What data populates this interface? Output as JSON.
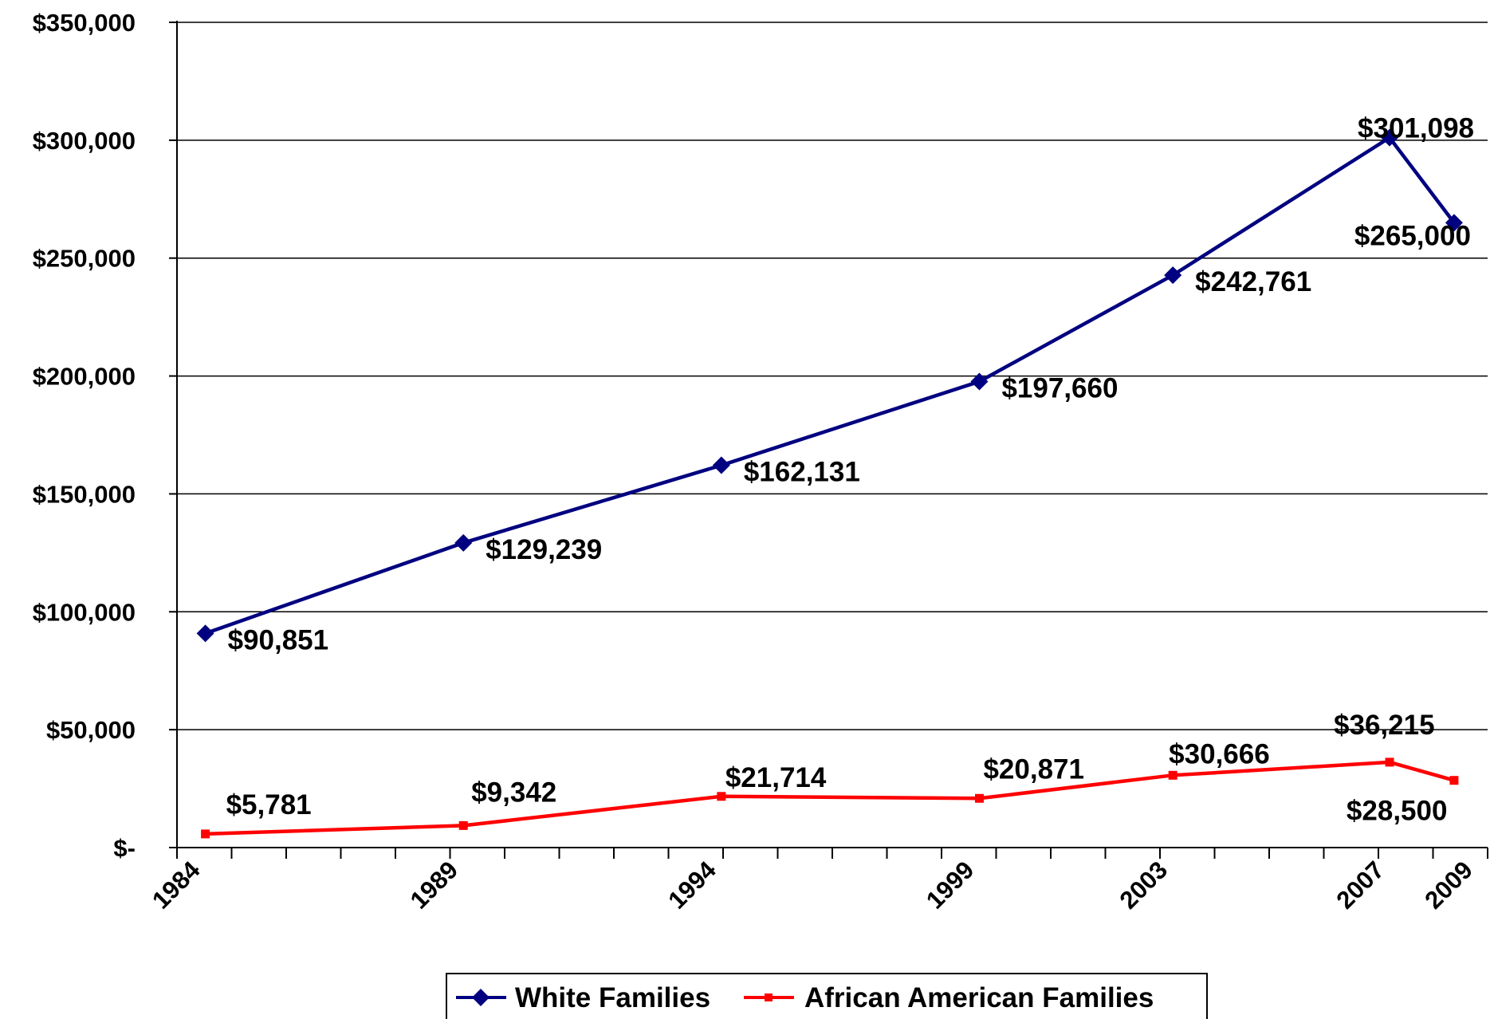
{
  "chart_data": {
    "type": "line",
    "x": [
      "1984",
      "1989",
      "1994",
      "1999",
      "2003",
      "2007",
      "2009"
    ],
    "x_positions": [
      1984,
      1989,
      1994,
      1999,
      2002.75,
      2006.95,
      2008.2
    ],
    "xlim": [
      1983.45,
      2008.85
    ],
    "ylim": [
      0,
      350000
    ],
    "y_ticks": [
      0,
      50000,
      100000,
      150000,
      200000,
      250000,
      300000,
      350000
    ],
    "y_tick_labels": [
      "$-",
      "$50,000",
      "$100,000",
      "$150,000",
      "$200,000",
      "$250,000",
      "$300,000",
      "$350,000"
    ],
    "grid": true,
    "legend_position": "bottom",
    "series": [
      {
        "name": "White Families",
        "color": "#000080",
        "marker": "diamond",
        "values": [
          90851,
          129239,
          162131,
          197660,
          242761,
          301098,
          265000
        ],
        "labels": [
          "$90,851",
          "$129,239",
          "$162,131",
          "$197,660",
          "$242,761",
          "$301,098",
          "$265,000"
        ]
      },
      {
        "name": "African American Families",
        "color": "#ff0000",
        "marker": "square",
        "values": [
          5781,
          9342,
          21714,
          20871,
          30666,
          36215,
          28500
        ],
        "labels": [
          "$5,781",
          "$9,342",
          "$21,714",
          "$20,871",
          "$30,666",
          "$36,215",
          "$28,500"
        ]
      }
    ]
  }
}
